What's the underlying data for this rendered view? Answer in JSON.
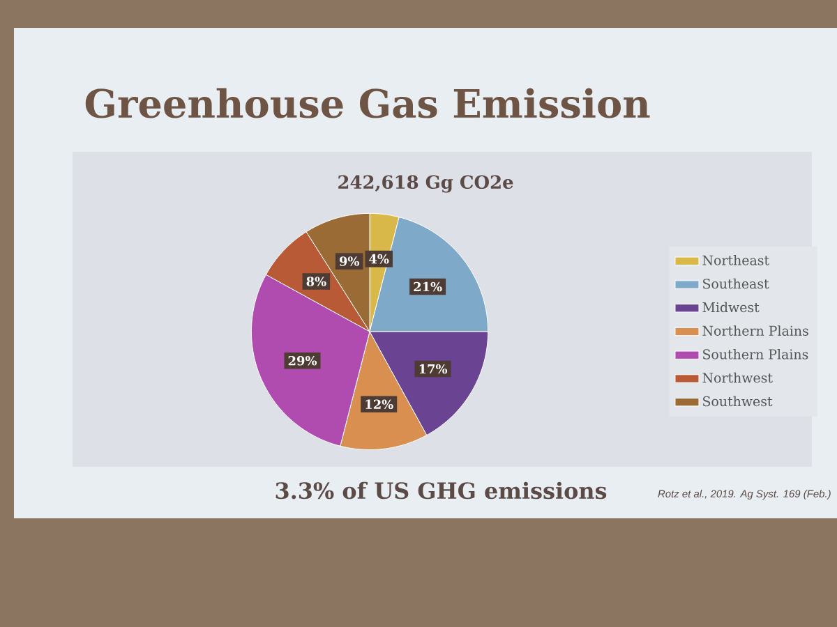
{
  "chart_data": {
    "type": "pie",
    "title": "Greenhouse Gas Emission",
    "subtitle": "242,618 Gg CO2e",
    "categories": [
      "Northeast",
      "Southeast",
      "Midwest",
      "Northern Plains",
      "Southern Plains",
      "Northwest",
      "Southwest"
    ],
    "values": [
      4,
      21,
      17,
      12,
      29,
      8,
      9
    ],
    "colors": [
      "#d9b84a",
      "#7fa9c9",
      "#6a4392",
      "#d98f50",
      "#b04cb0",
      "#b85a36",
      "#9a6b35"
    ],
    "value_labels": [
      "4%",
      "21%",
      "17%",
      "12%",
      "29%",
      "8%",
      "9%"
    ],
    "legend": "right",
    "annotations": [
      "3.3% of US GHG emissions",
      "Rotz et al., 2019. Ag Syst. 169 (Feb.)"
    ]
  }
}
